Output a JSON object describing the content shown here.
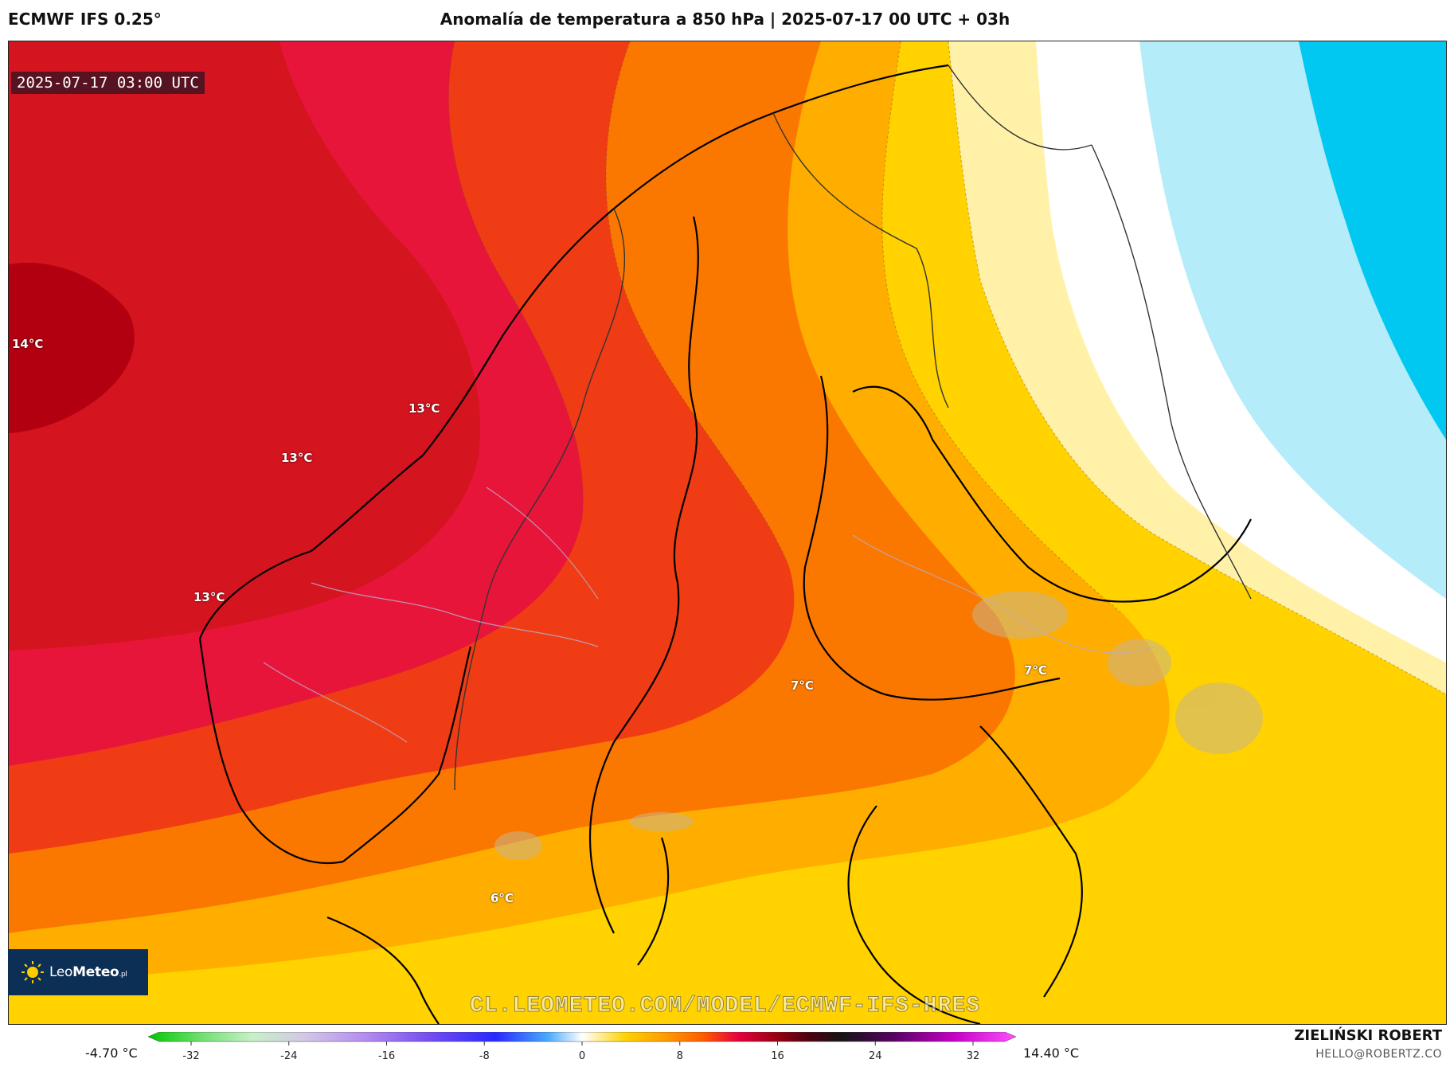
{
  "header": {
    "model": "ECMWF IFS 0.25°",
    "title": "Anomalía de temperatura a 850 hPa | 2025-07-17 00 UTC + 03h"
  },
  "map": {
    "valid_time": "2025-07-17 03:00 UTC",
    "labels": [
      {
        "text": "14°C"
      },
      {
        "text": "13°C"
      },
      {
        "text": "13°C"
      },
      {
        "text": "13°C"
      },
      {
        "text": "7°C"
      },
      {
        "text": "7°C"
      },
      {
        "text": "6°C"
      }
    ],
    "watermark": "CL.LEOMETEO.COM/MODEL/ECMWF-IFS-HRES",
    "palette": {
      "deep_red": "#b30010",
      "red": "#d4141e",
      "crimson": "#e8153a",
      "orange_red": "#f03c14",
      "orange": "#fa7800",
      "amber": "#ffae00",
      "yellow": "#ffd200",
      "pale_yellow": "#fff2a8",
      "white": "#ffffff",
      "light_cyan": "#b4ecfa",
      "cyan": "#00c8f0"
    }
  },
  "logo": {
    "brand_light": "Leo",
    "brand_bold": "Meteo",
    "suffix": ".pl"
  },
  "colorbar": {
    "min_label": "-4.70 °C",
    "max_label": "14.40 °C",
    "ticks": [
      "-32",
      "-24",
      "-16",
      "-8",
      "0",
      "8",
      "16",
      "24",
      "32"
    ]
  },
  "footer": {
    "author": "ZIELIŃSKI ROBERT",
    "email": "HELLO@ROBERTZ.CO"
  }
}
